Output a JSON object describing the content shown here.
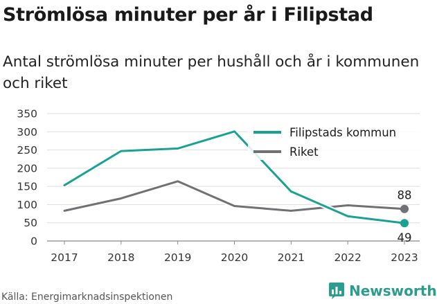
{
  "title": "Strömlösa minuter per år i Filipstad",
  "subtitle": "Antal strömlösa minuter per hushåll och år i kommunen och riket",
  "source": "Källa: Energimarknadsinspektionen",
  "brand": {
    "name": "Newsworthy",
    "icon": "newsworthy-logo-icon",
    "color": "#2a9d8f"
  },
  "chart_data": {
    "type": "line",
    "x": [
      "2017",
      "2018",
      "2019",
      "2020",
      "2021",
      "2022",
      "2023"
    ],
    "ylim": [
      0,
      350
    ],
    "yticks": [
      0,
      50,
      100,
      150,
      200,
      250,
      300,
      350
    ],
    "grid": true,
    "legend_position": "top-right",
    "series": [
      {
        "name": "Filipstads kommun",
        "color": "#19a193",
        "values": [
          153,
          247,
          254,
          301,
          136,
          68,
          49
        ],
        "end_label": "49"
      },
      {
        "name": "Riket",
        "color": "#707075",
        "values": [
          83,
          117,
          164,
          96,
          83,
          98,
          88
        ],
        "end_label": "88"
      }
    ]
  }
}
